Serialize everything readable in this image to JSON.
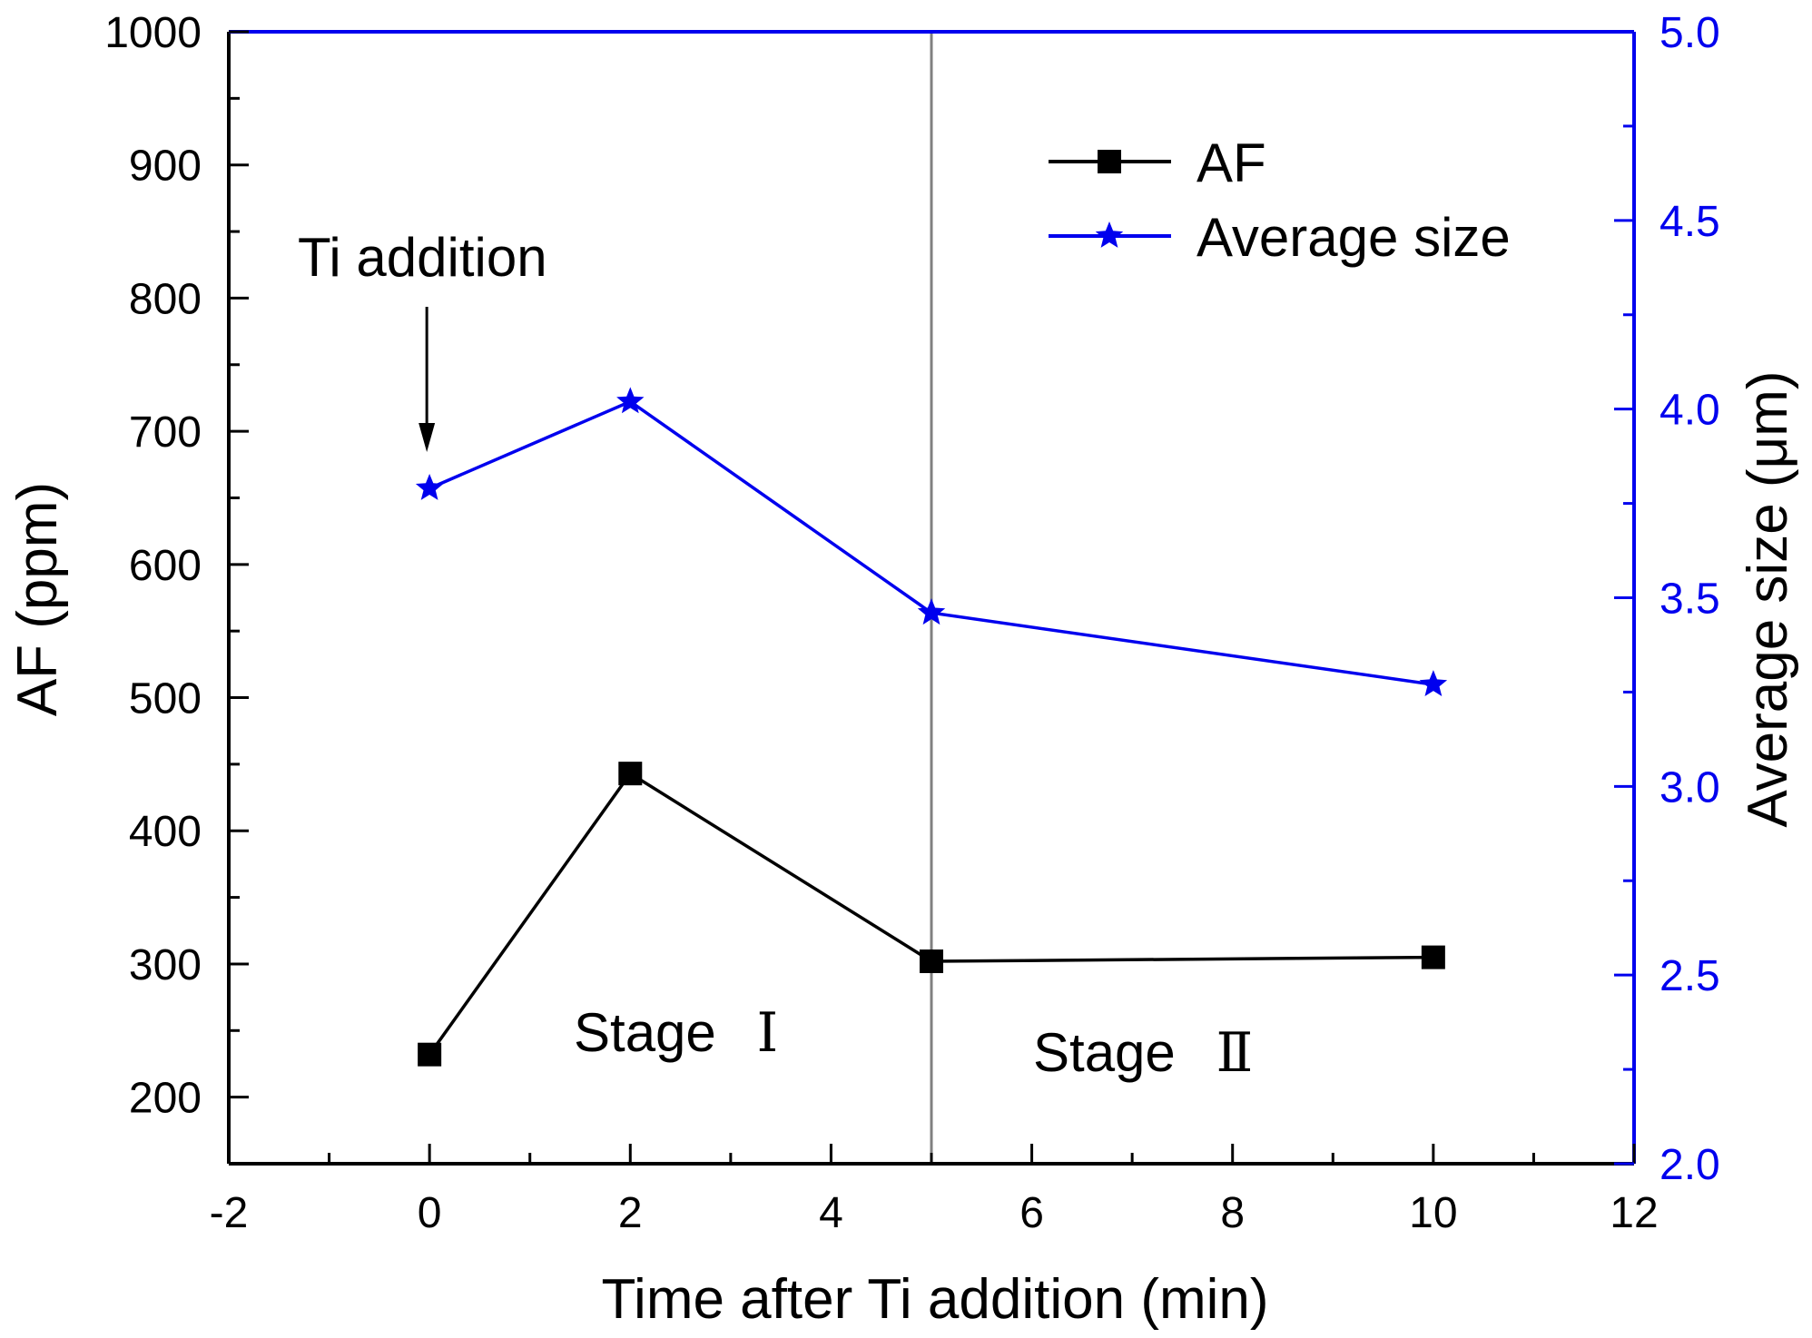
{
  "chart_data": {
    "type": "line",
    "xlabel": "Time after Ti addition (min)",
    "ylabel": "AF (ppm)",
    "y2label": "Average size (μm)",
    "xlim": [
      -2,
      12
    ],
    "ylim": [
      150,
      1000
    ],
    "y2lim": [
      2.0,
      5.0
    ],
    "x_ticks": [
      -2,
      0,
      2,
      4,
      6,
      8,
      10,
      12
    ],
    "y_ticks": [
      200,
      300,
      400,
      500,
      600,
      700,
      800,
      900,
      1000
    ],
    "y2_ticks": [
      "2.0",
      "2.5",
      "3.0",
      "3.5",
      "4.0",
      "4.5",
      "5.0"
    ],
    "grid": false,
    "legend_position": "top-right",
    "series": [
      {
        "name": "AF",
        "axis": "left",
        "color": "#000000",
        "marker": "square",
        "x": [
          0,
          2,
          5,
          10
        ],
        "y": [
          232,
          443,
          302,
          305
        ]
      },
      {
        "name": "Average size",
        "axis": "right",
        "color": "#0000ee",
        "marker": "star",
        "x": [
          0,
          2,
          5,
          10
        ],
        "y": [
          3.79,
          4.02,
          3.46,
          3.27
        ]
      }
    ],
    "annotations": {
      "arrow_label": "Ti addition",
      "arrow_x": 0,
      "stage1_label": "Stage",
      "stage1_numeral": "Ⅰ",
      "stage2_label": "Stage",
      "stage2_numeral": "Ⅱ",
      "divider_x": 5
    },
    "colors": {
      "left_axis": "#000000",
      "right_axis": "#0000ee",
      "divider": "#808080"
    }
  }
}
